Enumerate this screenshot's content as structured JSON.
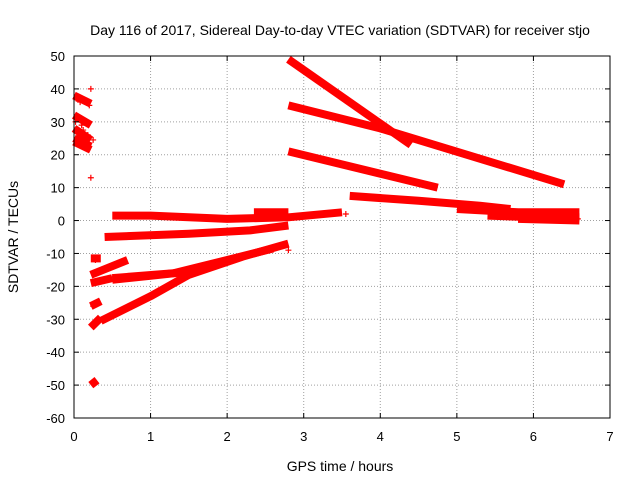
{
  "chart_data": {
    "type": "scatter",
    "title": "Day 116 of 2017, Sidereal Day-to-day VTEC variation (SDTVAR) for receiver stjo",
    "xlabel": "GPS time / hours",
    "ylabel": "SDTVAR / TECUs",
    "xlim": [
      0,
      7
    ],
    "ylim": [
      -60,
      50
    ],
    "x_ticks": [
      "0",
      "1",
      "2",
      "3",
      "4",
      "5",
      "6",
      "7"
    ],
    "y_ticks": [
      "50",
      "40",
      "30",
      "20",
      "10",
      "0",
      "-10",
      "-20",
      "-30",
      "-40",
      "-50",
      "-60"
    ],
    "grid": true,
    "legend": "none",
    "marker": "+",
    "color": "#ff0000",
    "series": [
      {
        "segments": [
          [
            [
              0.0,
              38.0
            ],
            [
              0.22,
              35.5
            ]
          ],
          [
            [
              0.0,
              32.0
            ],
            [
              0.22,
              29.0
            ]
          ],
          [
            [
              0.0,
              28.0
            ],
            [
              0.22,
              24.5
            ]
          ],
          [
            [
              0.0,
              25.0
            ],
            [
              0.22,
              22.5
            ]
          ],
          [
            [
              0.0,
              24.0
            ],
            [
              0.22,
              21.5
            ]
          ],
          [
            [
              0.22,
              -11.5
            ],
            [
              0.35,
              -11.5
            ]
          ],
          [
            [
              0.22,
              -16.5
            ],
            [
              0.7,
              -12.0
            ]
          ],
          [
            [
              0.22,
              -19.0
            ],
            [
              0.5,
              -17.5
            ]
          ],
          [
            [
              0.22,
              -26.0
            ],
            [
              0.35,
              -24.5
            ]
          ],
          [
            [
              0.22,
              -32.5
            ],
            [
              0.35,
              -29.5
            ]
          ],
          [
            [
              0.22,
              -50.0
            ],
            [
              0.3,
              -48.5
            ]
          ],
          [
            [
              0.5,
              -18.0
            ],
            [
              1.0,
              -16.8
            ],
            [
              1.5,
              -15.5
            ]
          ],
          [
            [
              0.35,
              -30.5
            ],
            [
              1.0,
              -23.0
            ],
            [
              1.5,
              -16.5
            ],
            [
              2.2,
              -11.0
            ],
            [
              2.8,
              -7.0
            ]
          ],
          [
            [
              0.5,
              -17.5
            ],
            [
              1.3,
              -16.0
            ],
            [
              2.0,
              -12.0
            ],
            [
              2.6,
              -8.5
            ]
          ],
          [
            [
              0.4,
              -5.0
            ],
            [
              1.5,
              -4.0
            ],
            [
              2.3,
              -3.0
            ],
            [
              2.8,
              -1.5
            ]
          ],
          [
            [
              0.5,
              1.5
            ],
            [
              1.0,
              1.5
            ],
            [
              2.0,
              0.5
            ],
            [
              2.8,
              1.0
            ],
            [
              3.5,
              2.5
            ]
          ],
          [
            [
              2.35,
              2.5
            ],
            [
              2.8,
              2.5
            ]
          ],
          [
            [
              2.8,
              49.0
            ],
            [
              4.4,
              23.0
            ]
          ],
          [
            [
              2.8,
              35.0
            ],
            [
              4.0,
              28.0
            ],
            [
              6.4,
              11.0
            ]
          ],
          [
            [
              2.8,
              21.0
            ],
            [
              4.75,
              10.0
            ]
          ],
          [
            [
              3.6,
              7.5
            ],
            [
              4.5,
              6.0
            ],
            [
              5.3,
              4.5
            ],
            [
              5.7,
              3.5
            ]
          ],
          [
            [
              5.0,
              3.5
            ],
            [
              5.8,
              2.5
            ],
            [
              6.6,
              2.5
            ]
          ],
          [
            [
              5.4,
              1.5
            ],
            [
              6.0,
              1.0
            ],
            [
              6.6,
              1.0
            ]
          ],
          [
            [
              5.8,
              0.5
            ],
            [
              6.6,
              0.0
            ]
          ]
        ]
      },
      {
        "points": [
          [
            0.22,
            40.0
          ],
          [
            0.22,
            13.0
          ],
          [
            2.8,
            -9.0
          ],
          [
            3.55,
            2.0
          ],
          [
            0.03,
            37.0
          ],
          [
            0.08,
            36.0
          ],
          [
            0.15,
            36.5
          ],
          [
            0.2,
            35.0
          ],
          [
            0.02,
            30.0
          ],
          [
            0.1,
            29.0
          ],
          [
            0.05,
            26.5
          ],
          [
            0.12,
            27.5
          ],
          [
            0.18,
            26.0
          ],
          [
            0.25,
            24.5
          ],
          [
            0.28,
            -12.0
          ],
          [
            0.25,
            -26.0
          ],
          [
            0.27,
            -49.0
          ],
          [
            0.3,
            -31.0
          ],
          [
            6.55,
            2.0
          ],
          [
            6.58,
            0.5
          ]
        ]
      }
    ]
  }
}
